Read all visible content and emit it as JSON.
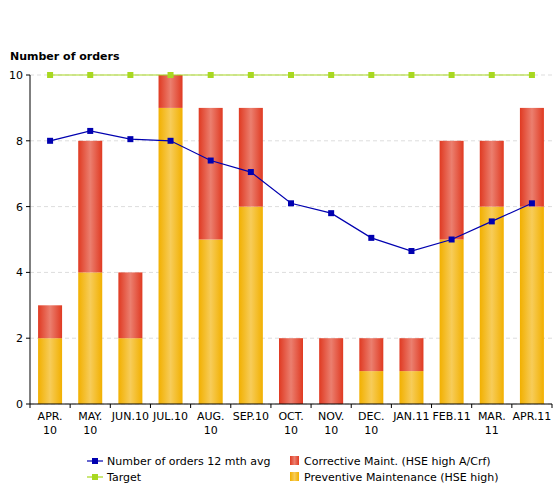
{
  "chart_data": {
    "type": "bar",
    "title": "Number of orders",
    "categories": [
      "APR. 10",
      "MAY. 10",
      "JUN.10",
      "JUL.10",
      "AUG. 10",
      "SEP.10",
      "OCT. 10",
      "NOV. 10",
      "DEC. 10",
      "JAN.11",
      "FEB.11",
      "MAR. 11",
      "APR.11"
    ],
    "stacked": true,
    "grid": true,
    "ylim": [
      0,
      10
    ],
    "yticks": [
      0,
      2,
      4,
      6,
      8,
      10
    ],
    "series": [
      {
        "name": "Number of orders 12 mth avg",
        "type": "line",
        "marker": "square",
        "color": "#0000b0",
        "values": [
          8.0,
          8.3,
          8.05,
          8.0,
          7.4,
          7.05,
          6.1,
          5.8,
          5.05,
          4.65,
          5.0,
          5.55,
          6.1
        ]
      },
      {
        "name": "Target",
        "type": "line",
        "marker": "square",
        "color": "#a8d820",
        "values": [
          10,
          10,
          10,
          10,
          10,
          10,
          10,
          10,
          10,
          10,
          10,
          10,
          10
        ]
      },
      {
        "name": "Corrective Maint. (HSE high A/Crf)",
        "type": "bar",
        "color": "#e03a22",
        "values": [
          1,
          4,
          2,
          1,
          4,
          3,
          2,
          2,
          1,
          1,
          3,
          2,
          3
        ]
      },
      {
        "name": "Preventive Maintenance (HSE high)",
        "type": "bar",
        "color": "#f2b000",
        "values": [
          2,
          4,
          2,
          9,
          5,
          6,
          0,
          0,
          1,
          1,
          5,
          6,
          6
        ]
      }
    ]
  }
}
